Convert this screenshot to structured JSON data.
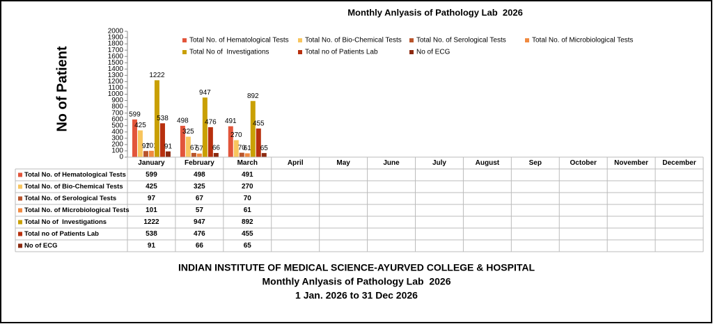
{
  "chart_data": {
    "type": "bar",
    "title": "Monthly Anlyasis of Pathology Lab  2026",
    "ylabel": "No of Patient",
    "categories": [
      "January",
      "February",
      "March",
      "April",
      "May",
      "June",
      "July",
      "August",
      "Sep",
      "October",
      "November",
      "December"
    ],
    "series": [
      {
        "name": "Total No. of Hematological Tests",
        "color": "#e2553b",
        "values": [
          599,
          498,
          491,
          null,
          null,
          null,
          null,
          null,
          null,
          null,
          null,
          null
        ]
      },
      {
        "name": "Total No. of Bio-Chemical Tests",
        "color": "#f8c55e",
        "values": [
          425,
          325,
          270,
          null,
          null,
          null,
          null,
          null,
          null,
          null,
          null,
          null
        ]
      },
      {
        "name": "Total No. of Serological Tests",
        "color": "#b9552c",
        "values": [
          97,
          67,
          70,
          null,
          null,
          null,
          null,
          null,
          null,
          null,
          null,
          null
        ]
      },
      {
        "name": "Total No. of Microbiological Tests",
        "color": "#f08a40",
        "values": [
          101,
          57,
          61,
          null,
          null,
          null,
          null,
          null,
          null,
          null,
          null,
          null
        ]
      },
      {
        "name": "Total No of  Investigations",
        "color": "#c9a004",
        "values": [
          1222,
          947,
          892,
          null,
          null,
          null,
          null,
          null,
          null,
          null,
          null,
          null
        ]
      },
      {
        "name": "Total no of Patients Lab",
        "color": "#b8300e",
        "values": [
          538,
          476,
          455,
          null,
          null,
          null,
          null,
          null,
          null,
          null,
          null,
          null
        ]
      },
      {
        "name": "No of ECG",
        "color": "#8c2a10",
        "values": [
          91,
          66,
          65,
          null,
          null,
          null,
          null,
          null,
          null,
          null,
          null,
          null
        ]
      }
    ],
    "ylim": [
      0,
      2000
    ],
    "yticks": [
      0,
      100,
      200,
      300,
      400,
      500,
      600,
      700,
      800,
      900,
      1000,
      1100,
      1200,
      1300,
      1400,
      1500,
      1600,
      1700,
      1800,
      1900,
      2000
    ],
    "grid": false,
    "legend": "top",
    "annotations": [
      "INDIAN INSTITUTE OF MEDICAL SCIENCE-AYURVED COLLEGE & HOSPITAL",
      "Monthly Anlyasis of Pathology Lab  2026",
      "1 Jan. 2026 to 31 Dec 2026"
    ]
  }
}
